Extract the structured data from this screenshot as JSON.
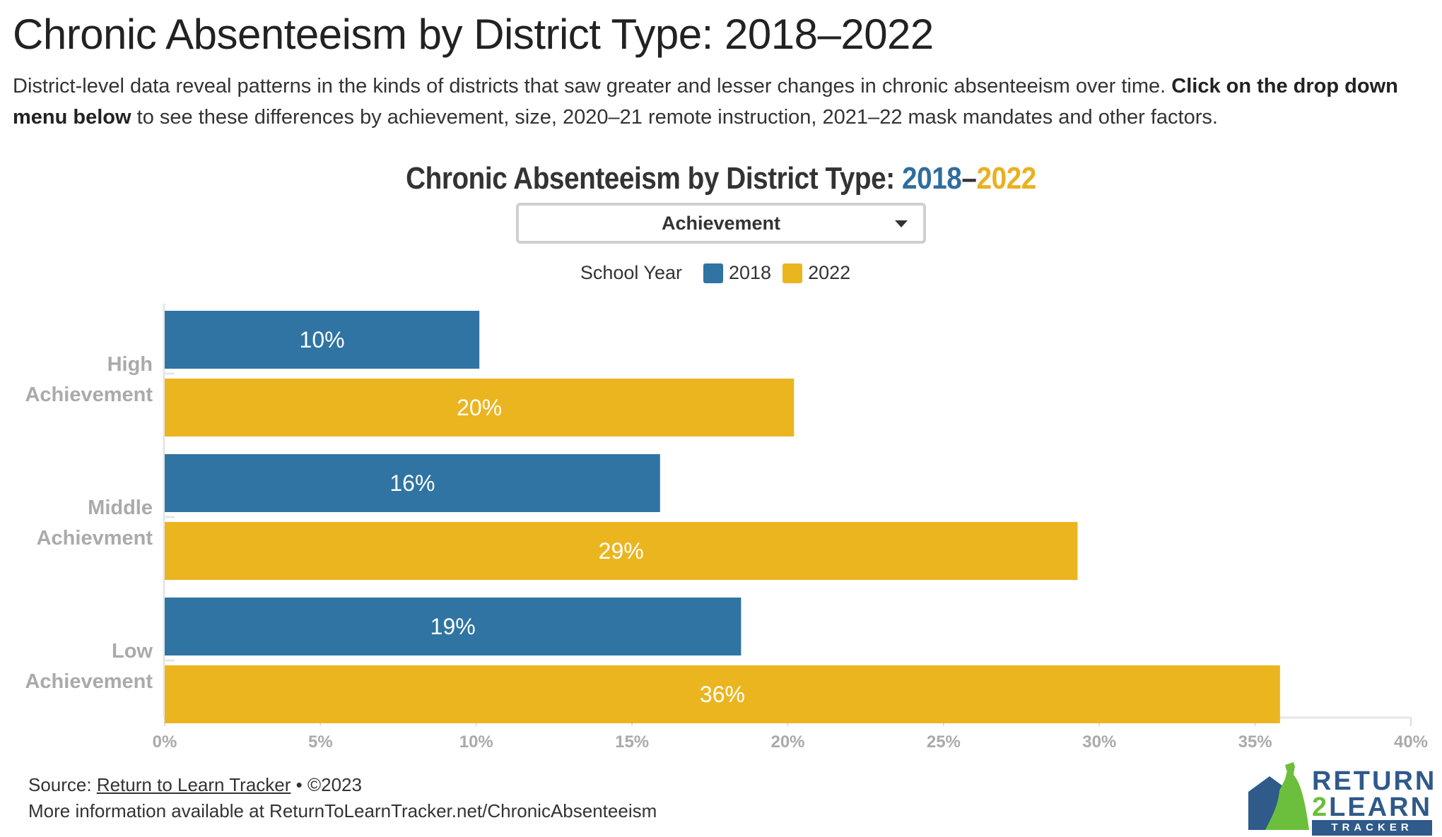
{
  "page": {
    "title": "Chronic Absenteeism by District Type: 2018–2022",
    "intro_text": "District-level data reveal patterns in the kinds of districts that saw greater and lesser changes in chronic absenteeism over time. ",
    "intro_bold": "Click on the drop down menu below",
    "intro_rest": " to see these differences by achievement, size, 2020–21 remote instruction, 2021–22 mask mandates and other factors."
  },
  "chart_header": {
    "title_prefix": "Chronic Absenteeism by District Type: ",
    "title_year1": "2018",
    "title_dash": "–",
    "title_year2": "2022"
  },
  "dropdown": {
    "selected": "Achievement"
  },
  "legend": {
    "title": "School Year",
    "entries": [
      {
        "label": "2018",
        "color": "#2f74a2"
      },
      {
        "label": "2022",
        "color": "#ebb520"
      }
    ]
  },
  "chart_data": {
    "type": "bar",
    "orientation": "horizontal",
    "categories": [
      "High\nAchievement",
      "Middle\nAchievment",
      "Low\nAchievement"
    ],
    "series": [
      {
        "name": "2018",
        "color": "#2f74a2",
        "values": [
          10.1,
          15.9,
          18.5
        ],
        "labels": [
          "10%",
          "16%",
          "19%"
        ]
      },
      {
        "name": "2022",
        "color": "#ebb520",
        "values": [
          20.2,
          29.3,
          35.8
        ],
        "labels": [
          "20%",
          "29%",
          "36%"
        ]
      }
    ],
    "xlim": [
      0,
      40
    ],
    "x_ticks": [
      0,
      5,
      10,
      15,
      20,
      25,
      30,
      35,
      40
    ],
    "x_tick_labels": [
      "0%",
      "5%",
      "10%",
      "15%",
      "20%",
      "25%",
      "30%",
      "35%",
      "40%"
    ],
    "grid": false,
    "legend_position": "top-center"
  },
  "footer": {
    "source_prefix": "Source: ",
    "source_link": "Return to Learn Tracker",
    "source_suffix": " • ©2023",
    "more_info": "More information available at ReturnToLearnTracker.net/ChronicAbsenteeism"
  },
  "logo": {
    "line1": "RETURN",
    "line2_num": "2",
    "line2_word": "LEARN",
    "line3": "TRACKER",
    "colors": {
      "navy": "#2f5a8a",
      "green": "#6cbf3c"
    }
  }
}
